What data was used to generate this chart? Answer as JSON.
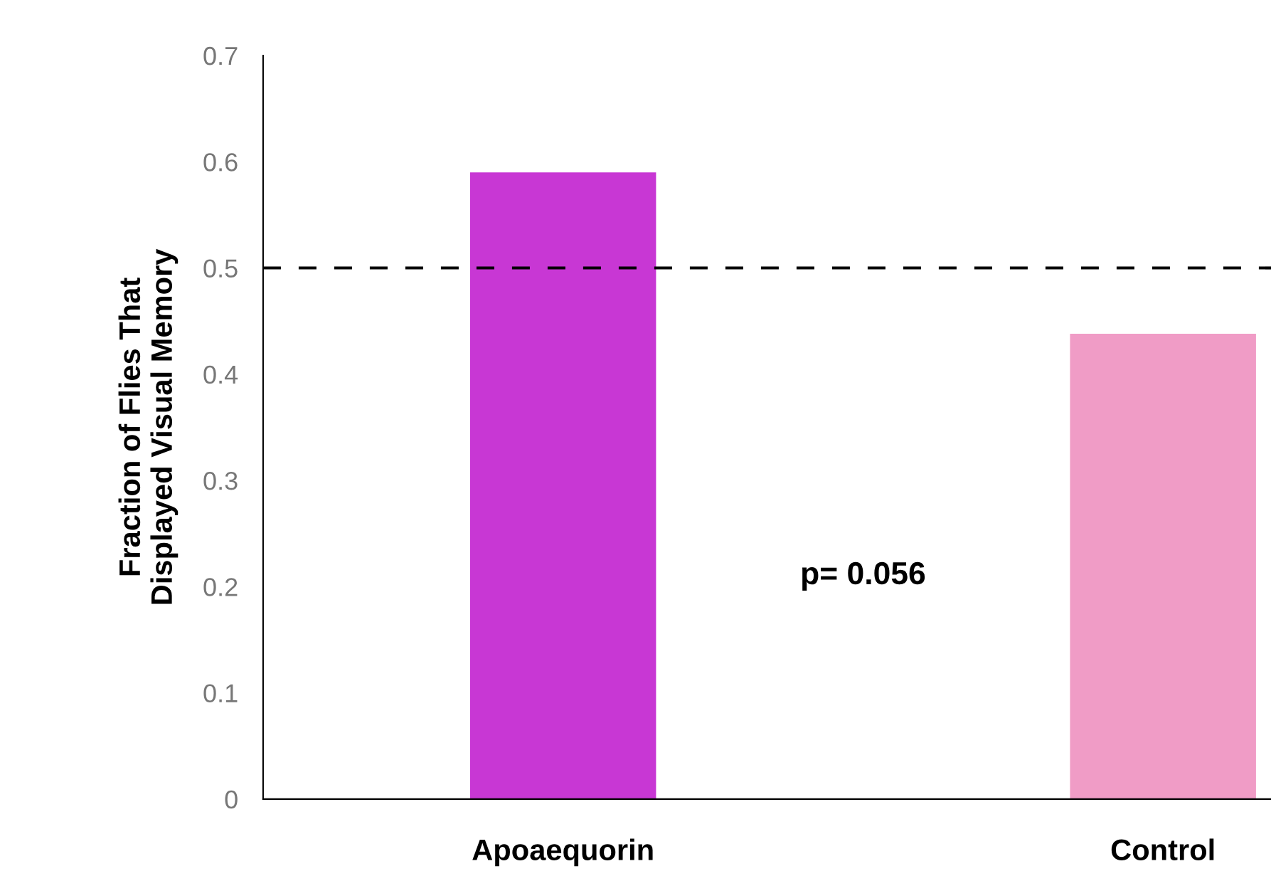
{
  "chart_data": {
    "type": "bar",
    "ylabel": "Fraction of Flies That\nDisplayed Visual Memory",
    "categories": [
      "Apoaequorin",
      "Control"
    ],
    "values": [
      0.59,
      0.438
    ],
    "colors": [
      "#c837d4",
      "#f09cc6"
    ],
    "ylim": [
      0,
      0.7
    ],
    "yticks": [
      0,
      0.1,
      0.2,
      0.3,
      0.4,
      0.5,
      0.6,
      0.7
    ],
    "grid": false,
    "ref_lines": [
      {
        "axis": "y",
        "value": 0.5,
        "color": "#000000",
        "line_style": "dashed"
      }
    ],
    "annotations": [
      "p= 0.056"
    ]
  }
}
